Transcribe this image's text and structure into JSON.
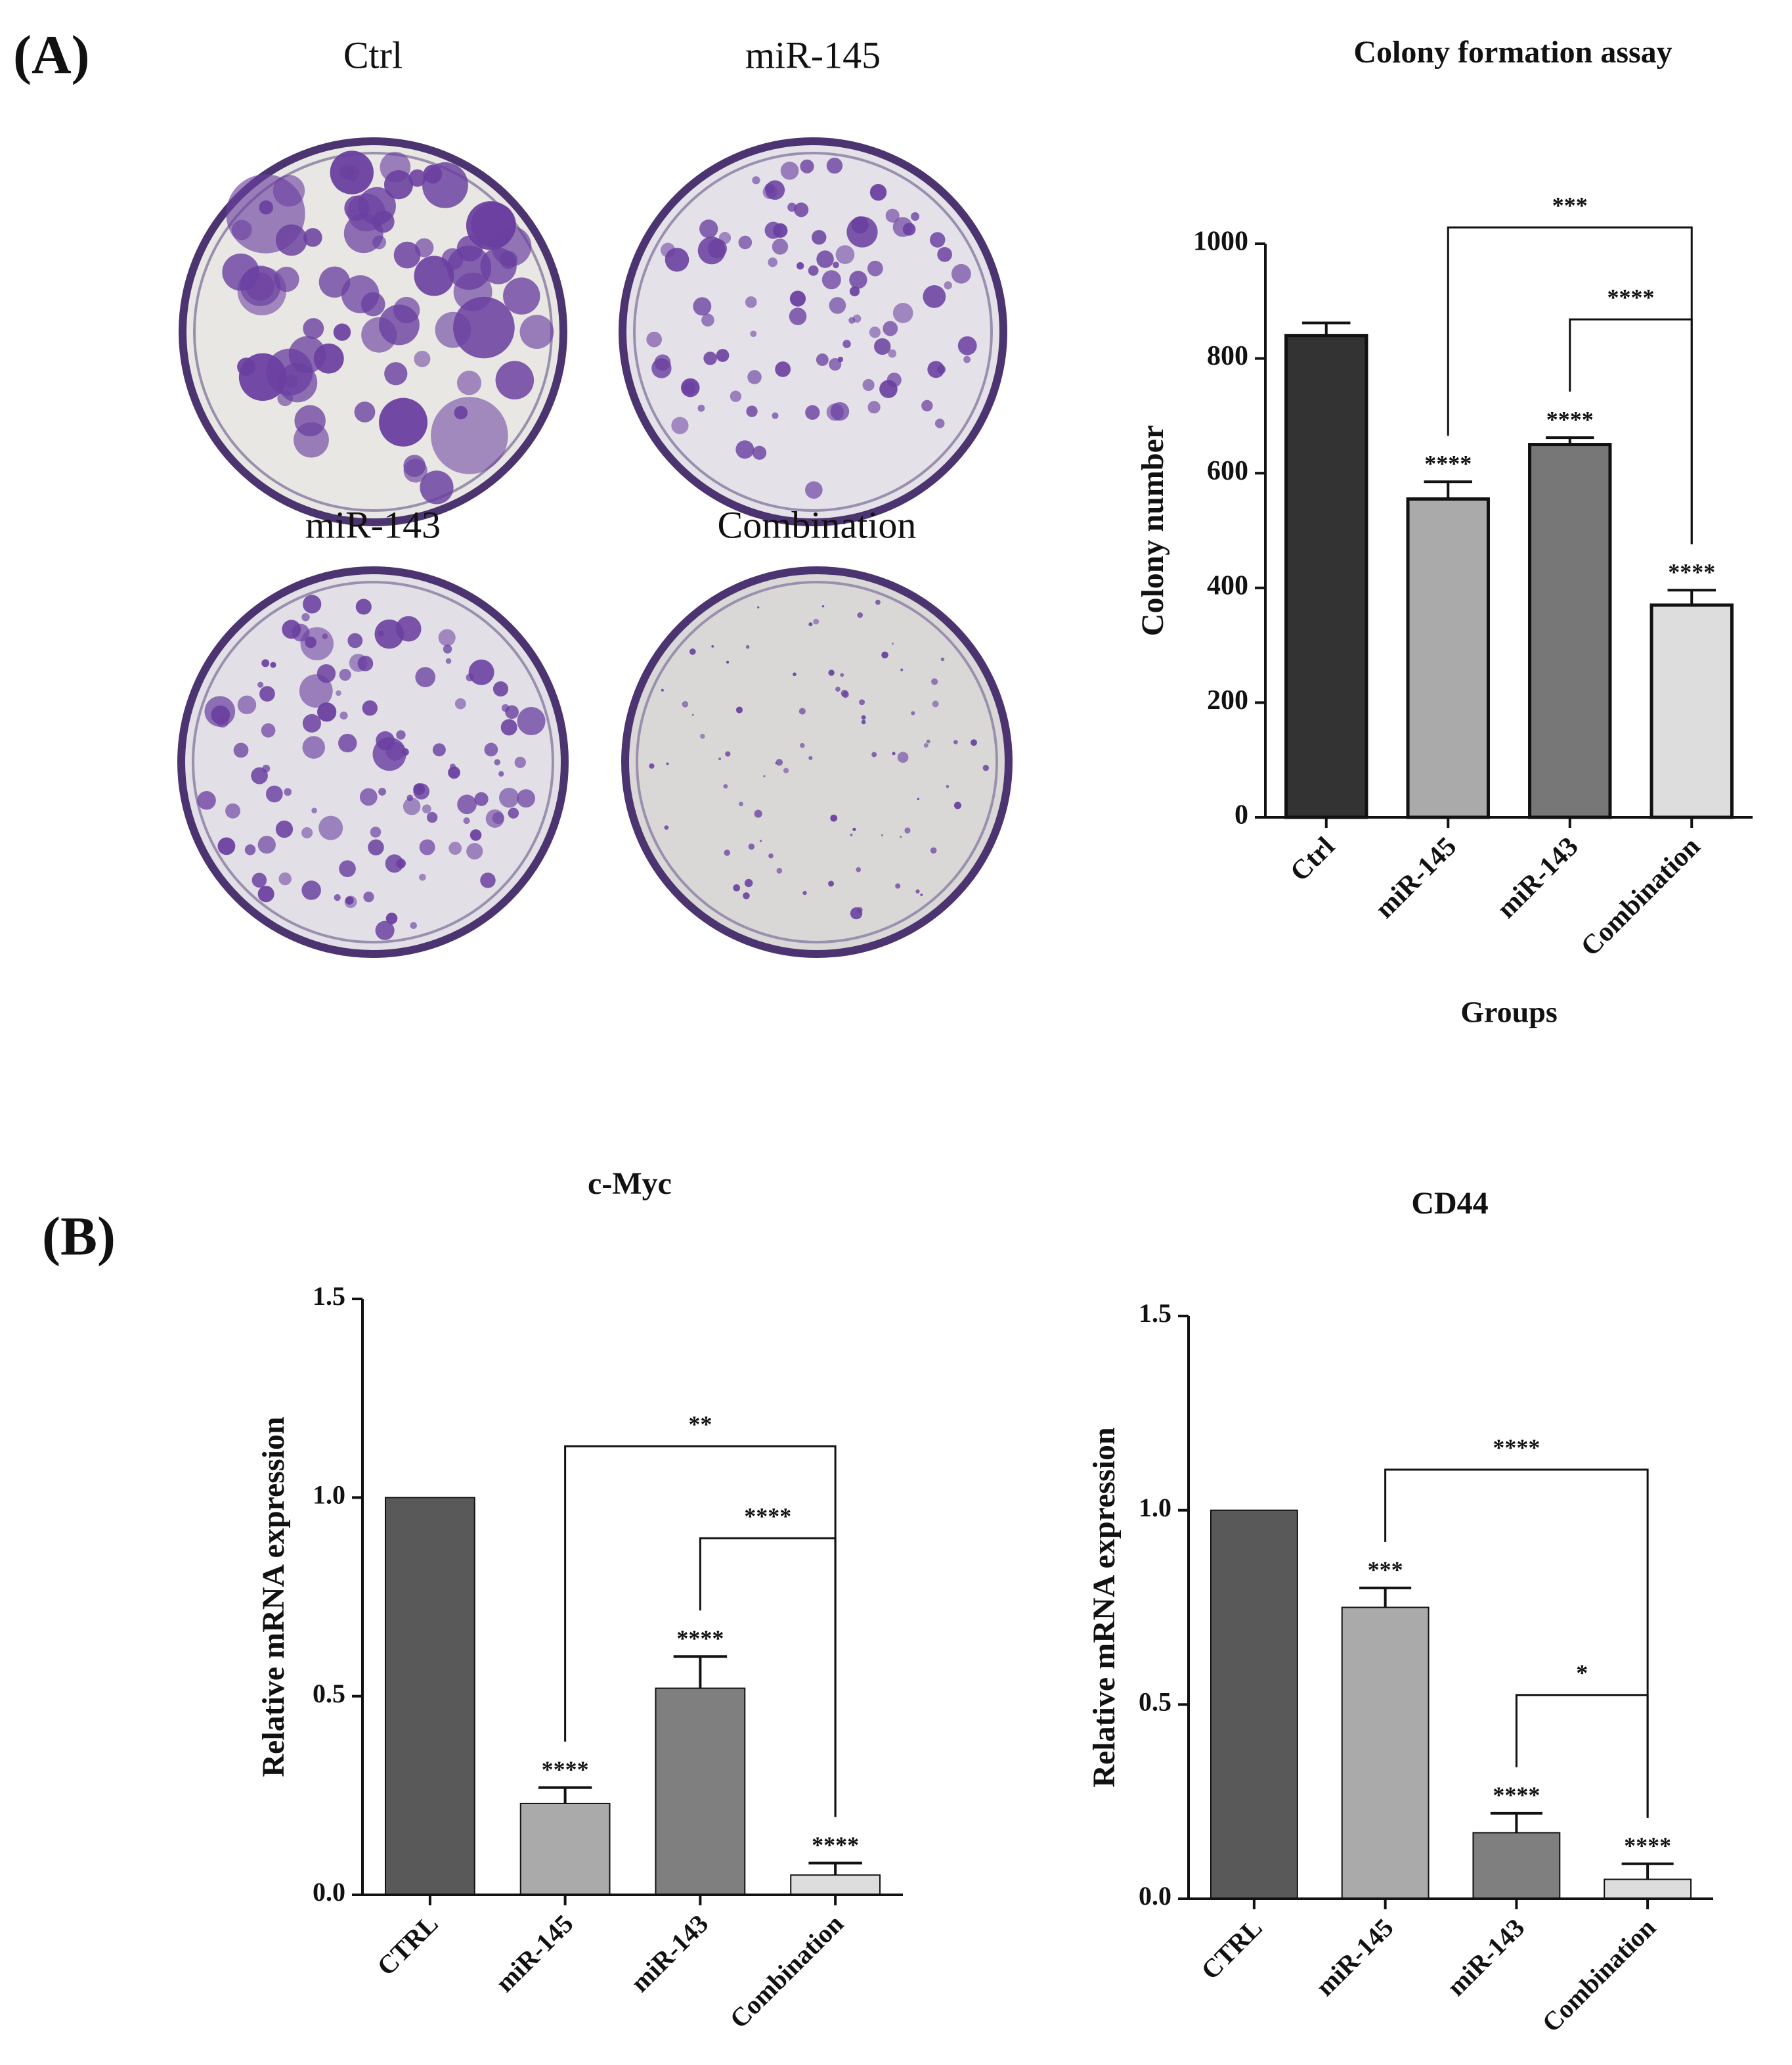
{
  "panels": [
    "(A)",
    "(B)"
  ],
  "plates": [
    "Ctrl",
    "miR-145",
    "miR-143",
    "Combination"
  ],
  "chart_data": [
    {
      "type": "bar",
      "title": "Colony formation assay",
      "y_label": "Colony number",
      "x_label": "Groups",
      "categories": [
        "Ctrl",
        "miR-145",
        "miR-143",
        "Combination"
      ],
      "values": [
        840,
        555,
        650,
        370
      ],
      "errors": [
        22,
        30,
        12,
        26
      ],
      "colors": [
        "#333333",
        "#aaaaaa",
        "#777777",
        "#dddddd"
      ],
      "significance": [
        null,
        "****",
        "****",
        "****"
      ],
      "comparisons": [
        {
          "from": 2,
          "to": 3,
          "label": "****"
        },
        {
          "from": 1,
          "to": 3,
          "label": "***"
        }
      ],
      "ylim": [
        0,
        1000
      ],
      "yticks": [
        0,
        200,
        400,
        600,
        800,
        1000
      ]
    },
    {
      "type": "bar",
      "title": "c-Myc",
      "y_label": "Relative mRNA expression",
      "categories": [
        "CTRL",
        "miR-145",
        "miR-143",
        "Combination"
      ],
      "values": [
        1.0,
        0.23,
        0.52,
        0.05
      ],
      "errors": [
        0,
        0.04,
        0.08,
        0.03
      ],
      "colors": [
        "#595959",
        "#aaaaaa",
        "#7f7f7f",
        "#dddddd"
      ],
      "significance": [
        null,
        "****",
        "****",
        "****"
      ],
      "comparisons": [
        {
          "from": 2,
          "to": 3,
          "label": "****"
        },
        {
          "from": 1,
          "to": 3,
          "label": "**"
        }
      ],
      "ylim": [
        0,
        1.5
      ],
      "yticks": [
        {
          "value": 0,
          "label": "0.0"
        },
        0.5,
        {
          "value": 1,
          "label": "1.0"
        },
        1.5
      ]
    },
    {
      "type": "bar",
      "title": "CD44",
      "y_label": "Relative mRNA expression",
      "categories": [
        "CTRL",
        "miR-145",
        "miR-143",
        "Combination"
      ],
      "values": [
        1.0,
        0.75,
        0.17,
        0.05
      ],
      "errors": [
        0,
        0.05,
        0.05,
        0.04
      ],
      "colors": [
        "#595959",
        "#aaaaaa",
        "#7f7f7f",
        "#dddddd"
      ],
      "significance": [
        null,
        "***",
        "****",
        "****"
      ],
      "comparisons": [
        {
          "from": 2,
          "to": 3,
          "label": "*"
        },
        {
          "from": 1,
          "to": 3,
          "label": "****"
        }
      ],
      "ylim": [
        0,
        1.5
      ],
      "yticks": [
        {
          "value": 0,
          "label": "0.0"
        },
        0.5,
        {
          "value": 1,
          "label": "1.0"
        },
        1.5
      ]
    }
  ]
}
